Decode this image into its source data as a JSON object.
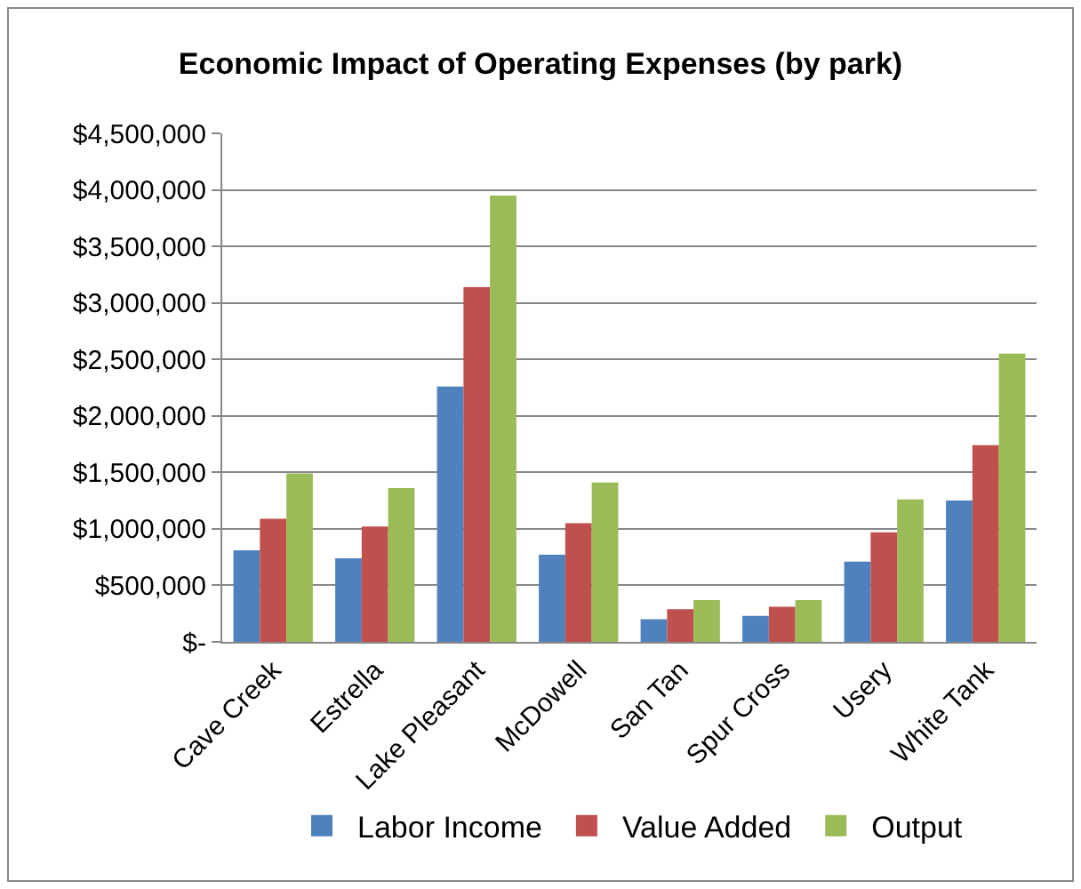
{
  "chart_data": {
    "type": "bar",
    "title": "Economic Impact of Operating Expenses (by park)",
    "categories": [
      "Cave Creek",
      "Estrella",
      "Lake Pleasant",
      "McDowell",
      "San Tan",
      "Spur Cross",
      "Usery",
      "White Tank"
    ],
    "series": [
      {
        "name": "Labor Income",
        "color": "#4f81bd",
        "values": [
          810000,
          740000,
          2260000,
          770000,
          200000,
          230000,
          710000,
          1250000
        ]
      },
      {
        "name": "Value Added",
        "color": "#c0504d",
        "values": [
          1090000,
          1020000,
          3140000,
          1050000,
          290000,
          310000,
          970000,
          1740000
        ]
      },
      {
        "name": "Output",
        "color": "#9bbb59",
        "values": [
          1490000,
          1360000,
          3950000,
          1410000,
          370000,
          370000,
          1260000,
          2550000
        ]
      }
    ],
    "ylim": [
      0,
      4500000
    ],
    "yticks": [
      {
        "value": 0,
        "label": "$-"
      },
      {
        "value": 500000,
        "label": "$500,000"
      },
      {
        "value": 1000000,
        "label": "$1,000,000"
      },
      {
        "value": 1500000,
        "label": "$1,500,000"
      },
      {
        "value": 2000000,
        "label": "$2,000,000"
      },
      {
        "value": 2500000,
        "label": "$2,500,000"
      },
      {
        "value": 3000000,
        "label": "$3,000,000"
      },
      {
        "value": 3500000,
        "label": "$3,500,000"
      },
      {
        "value": 4000000,
        "label": "$4,000,000"
      },
      {
        "value": 4500000,
        "label": "$4,500,000"
      }
    ],
    "grid": "y",
    "legend": "bottom"
  }
}
